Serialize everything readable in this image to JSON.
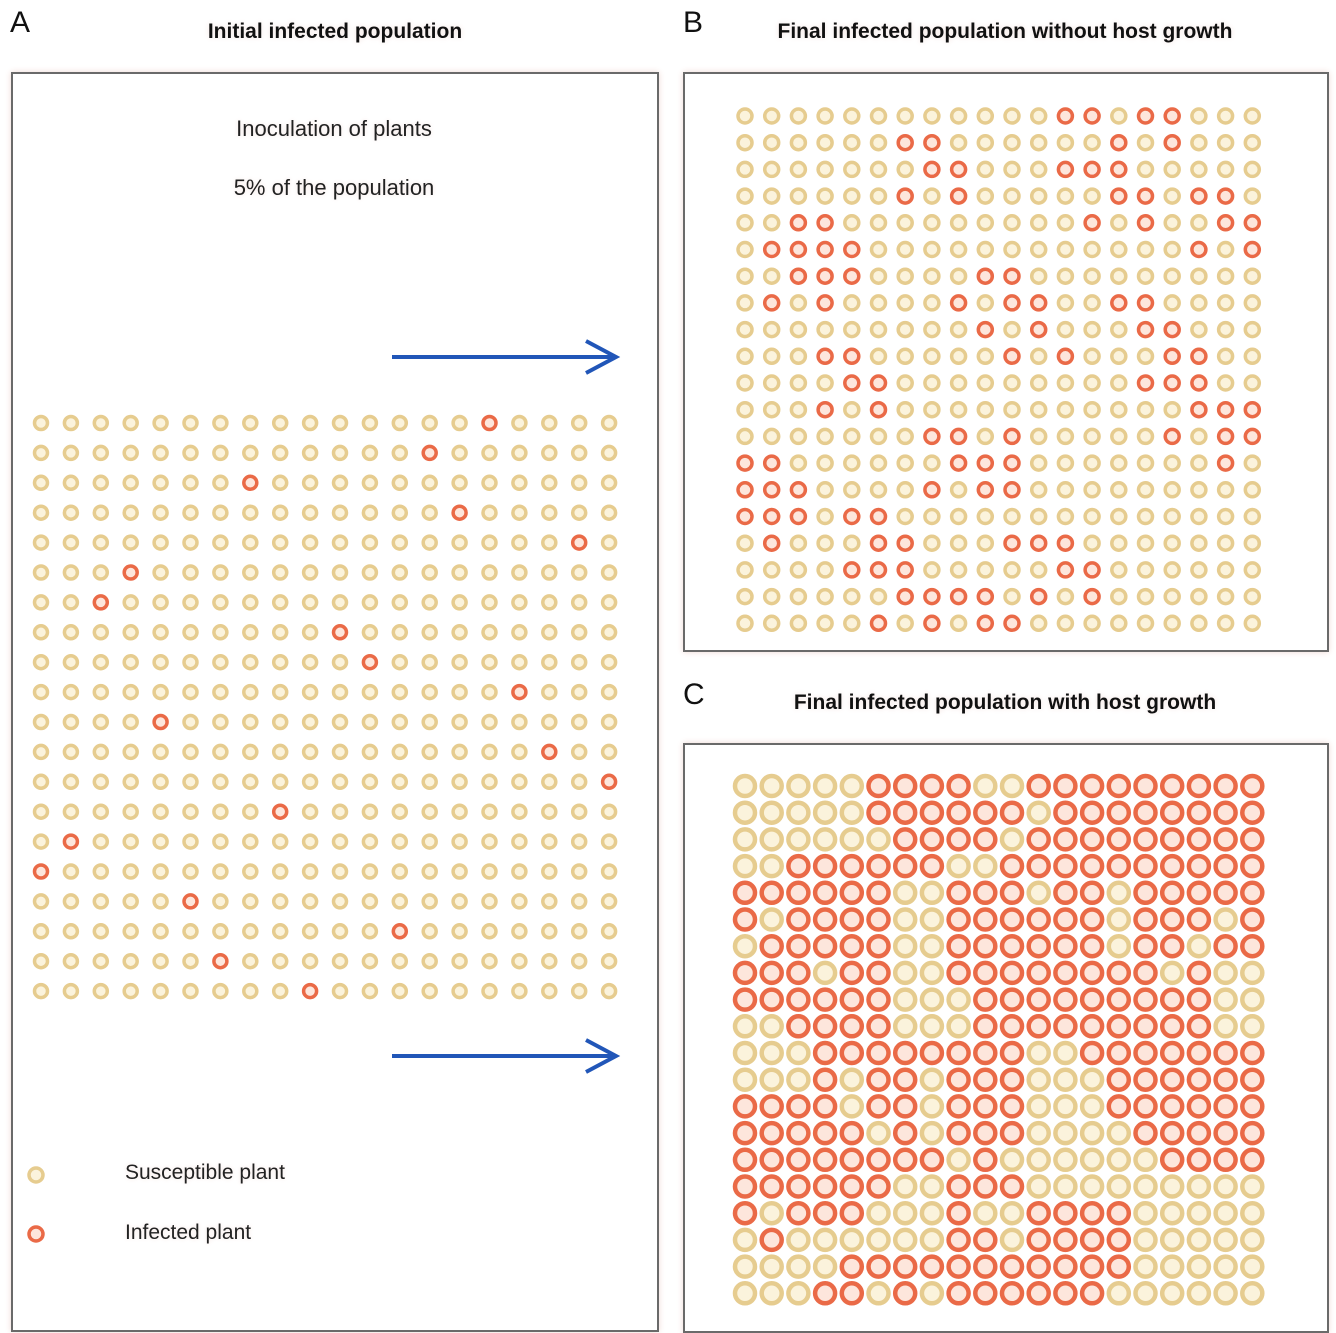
{
  "colors": {
    "susceptible_ring": "#e6cc8f",
    "susceptible_fill": "#fbf3dc",
    "infected_ring": "#ea6a47",
    "infected_fill": "#fde6dc",
    "arrow": "#2156b8",
    "frame": "#6a6a6a"
  },
  "panel_a": {
    "letter": "A",
    "title": "Initial infected population",
    "note_1": "Inoculation of plants",
    "note_2": "5% of the population",
    "grid": {
      "rows": 20,
      "cols": 20,
      "infected": [
        [
          0,
          15
        ],
        [
          1,
          13
        ],
        [
          2,
          7
        ],
        [
          3,
          14
        ],
        [
          4,
          18
        ],
        [
          5,
          3
        ],
        [
          6,
          2
        ],
        [
          7,
          10
        ],
        [
          8,
          11
        ],
        [
          9,
          16
        ],
        [
          10,
          4
        ],
        [
          11,
          17
        ],
        [
          12,
          19
        ],
        [
          13,
          8
        ],
        [
          14,
          1
        ],
        [
          15,
          0
        ],
        [
          16,
          5
        ],
        [
          17,
          12
        ],
        [
          18,
          6
        ],
        [
          19,
          9
        ]
      ]
    },
    "legend": {
      "susceptible_label": "Susceptible plant",
      "infected_label": "Infected plant"
    }
  },
  "panel_b": {
    "letter": "B",
    "title": "Final infected population without host growth",
    "grid": {
      "rows": 20,
      "cols": 20,
      "infected": [
        [
          0,
          12
        ],
        [
          0,
          13
        ],
        [
          0,
          15
        ],
        [
          0,
          16
        ],
        [
          1,
          6
        ],
        [
          1,
          7
        ],
        [
          1,
          14
        ],
        [
          1,
          16
        ],
        [
          2,
          7
        ],
        [
          2,
          8
        ],
        [
          2,
          12
        ],
        [
          2,
          13
        ],
        [
          2,
          14
        ],
        [
          3,
          6
        ],
        [
          3,
          8
        ],
        [
          3,
          14
        ],
        [
          3,
          15
        ],
        [
          3,
          17
        ],
        [
          3,
          18
        ],
        [
          4,
          2
        ],
        [
          4,
          3
        ],
        [
          4,
          13
        ],
        [
          4,
          15
        ],
        [
          4,
          18
        ],
        [
          4,
          19
        ],
        [
          5,
          1
        ],
        [
          5,
          2
        ],
        [
          5,
          3
        ],
        [
          5,
          4
        ],
        [
          5,
          17
        ],
        [
          5,
          19
        ],
        [
          6,
          2
        ],
        [
          6,
          3
        ],
        [
          6,
          4
        ],
        [
          6,
          9
        ],
        [
          6,
          10
        ],
        [
          7,
          1
        ],
        [
          7,
          3
        ],
        [
          7,
          8
        ],
        [
          7,
          10
        ],
        [
          7,
          11
        ],
        [
          7,
          14
        ],
        [
          7,
          15
        ],
        [
          8,
          9
        ],
        [
          8,
          11
        ],
        [
          8,
          15
        ],
        [
          8,
          16
        ],
        [
          9,
          3
        ],
        [
          9,
          4
        ],
        [
          9,
          10
        ],
        [
          9,
          12
        ],
        [
          9,
          16
        ],
        [
          9,
          17
        ],
        [
          10,
          4
        ],
        [
          10,
          5
        ],
        [
          10,
          15
        ],
        [
          10,
          16
        ],
        [
          10,
          17
        ],
        [
          11,
          3
        ],
        [
          11,
          5
        ],
        [
          11,
          17
        ],
        [
          11,
          18
        ],
        [
          11,
          19
        ],
        [
          12,
          7
        ],
        [
          12,
          8
        ],
        [
          12,
          10
        ],
        [
          12,
          16
        ],
        [
          12,
          18
        ],
        [
          12,
          19
        ],
        [
          13,
          0
        ],
        [
          13,
          1
        ],
        [
          13,
          8
        ],
        [
          13,
          9
        ],
        [
          13,
          10
        ],
        [
          13,
          18
        ],
        [
          14,
          0
        ],
        [
          14,
          1
        ],
        [
          14,
          2
        ],
        [
          14,
          7
        ],
        [
          14,
          9
        ],
        [
          14,
          10
        ],
        [
          15,
          0
        ],
        [
          15,
          1
        ],
        [
          15,
          2
        ],
        [
          15,
          4
        ],
        [
          15,
          5
        ],
        [
          16,
          1
        ],
        [
          16,
          5
        ],
        [
          16,
          6
        ],
        [
          16,
          10
        ],
        [
          16,
          11
        ],
        [
          16,
          12
        ],
        [
          17,
          4
        ],
        [
          17,
          5
        ],
        [
          17,
          6
        ],
        [
          17,
          12
        ],
        [
          17,
          13
        ],
        [
          18,
          6
        ],
        [
          18,
          7
        ],
        [
          18,
          8
        ],
        [
          18,
          9
        ],
        [
          18,
          11
        ],
        [
          18,
          13
        ],
        [
          19,
          5
        ],
        [
          19,
          7
        ],
        [
          19,
          9
        ],
        [
          19,
          10
        ]
      ]
    }
  },
  "panel_c": {
    "letter": "C",
    "title": "Final infected population with host growth",
    "grid": {
      "rows": 20,
      "cols": 20,
      "susceptible_rows": [
        "...................",
        "0,1,2,3,4,11",
        "0,1,2,3,4,5,10",
        "0,1,8,9",
        "6,7,11,14",
        "1,6,7,14,18",
        "0,6,7,14,17",
        "3,6,7,16,18,19",
        "6,7,8,18,19",
        "0,1,6,7,8,18,19",
        "0,1,2,11,12",
        "0,1,2,4,7,11,12,13",
        "4,7,11,12,13",
        "5,7,11,12,13,14",
        "8,10,11,12,13,14,15",
        "6,7,11,12,13,14,15,16,17,18,19",
        "1,5,6,7,9,10,15,16,17,18,19",
        "0,2,3,4,5,6,7,10,15,16,17,18,19",
        "0,1,2,3,15,16,17,18,19",
        "0,1,2,5,7,14,15,16,17,18,19"
      ]
    }
  }
}
